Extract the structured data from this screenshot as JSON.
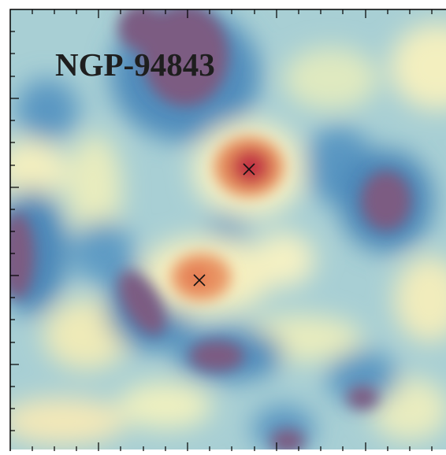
{
  "label": "NGP-94843"
}
